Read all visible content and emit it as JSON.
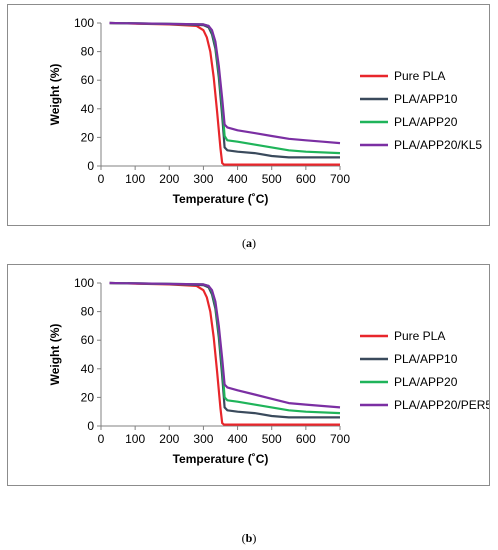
{
  "chart_data": [
    {
      "type": "line",
      "panel_label": "a",
      "xlabel": "Temperature (˚C)",
      "ylabel": "Weight (%)",
      "xlim": [
        0,
        700
      ],
      "ylim": [
        0,
        100
      ],
      "xticks": [
        "0",
        "100",
        "200",
        "300",
        "400",
        "500",
        "600",
        "700"
      ],
      "yticks": [
        "0",
        "20",
        "40",
        "60",
        "80",
        "100"
      ],
      "legend_position": "right",
      "grid": false,
      "series": [
        {
          "name": "Pure PLA",
          "color": "#e8262b",
          "x": [
            25,
            100,
            200,
            280,
            300,
            310,
            320,
            330,
            340,
            350,
            355,
            360,
            400,
            500,
            600,
            700
          ],
          "y": [
            100,
            99.6,
            99,
            98,
            95,
            90,
            80,
            62,
            38,
            12,
            2,
            1,
            1,
            1,
            1,
            1
          ]
        },
        {
          "name": "PLA/APP10",
          "color": "#3a4a5c",
          "x": [
            25,
            100,
            200,
            300,
            315,
            325,
            335,
            345,
            355,
            362,
            370,
            400,
            450,
            500,
            550,
            600,
            700
          ],
          "y": [
            100,
            99.7,
            99.3,
            98.5,
            97,
            92,
            82,
            62,
            35,
            13,
            11,
            10,
            9,
            7,
            6,
            6,
            6
          ]
        },
        {
          "name": "PLA/APP20",
          "color": "#1fb45a",
          "x": [
            25,
            100,
            200,
            300,
            315,
            325,
            335,
            345,
            355,
            362,
            370,
            400,
            450,
            500,
            550,
            600,
            700
          ],
          "y": [
            100,
            99.7,
            99.4,
            99,
            98,
            94,
            85,
            66,
            42,
            21,
            18,
            17,
            15,
            13,
            11,
            10,
            9
          ]
        },
        {
          "name": "PLA/APP20/KL5",
          "color": "#7b2fa3",
          "x": [
            25,
            100,
            200,
            300,
            315,
            325,
            335,
            345,
            355,
            362,
            370,
            400,
            450,
            500,
            550,
            600,
            650,
            700
          ],
          "y": [
            100,
            99.7,
            99.4,
            99,
            98,
            95,
            87,
            70,
            47,
            29,
            27,
            25,
            23,
            21,
            19,
            18,
            17,
            16
          ]
        }
      ]
    },
    {
      "type": "line",
      "panel_label": "b",
      "xlabel": "Temperature (˚C)",
      "ylabel": "Weight (%)",
      "xlim": [
        0,
        700
      ],
      "ylim": [
        0,
        100
      ],
      "xticks": [
        "0",
        "100",
        "200",
        "300",
        "400",
        "500",
        "600",
        "700"
      ],
      "yticks": [
        "0",
        "20",
        "40",
        "60",
        "80",
        "100"
      ],
      "legend_position": "right",
      "grid": false,
      "series": [
        {
          "name": "Pure PLA",
          "color": "#e8262b",
          "x": [
            25,
            100,
            200,
            280,
            300,
            310,
            320,
            330,
            340,
            350,
            355,
            360,
            400,
            500,
            600,
            700
          ],
          "y": [
            100,
            99.6,
            99,
            98,
            95,
            90,
            80,
            62,
            38,
            12,
            2,
            1,
            1,
            1,
            1,
            1
          ]
        },
        {
          "name": "PLA/APP10",
          "color": "#3a4a5c",
          "x": [
            25,
            100,
            200,
            300,
            315,
            325,
            335,
            345,
            355,
            362,
            370,
            400,
            450,
            500,
            550,
            600,
            700
          ],
          "y": [
            100,
            99.7,
            99.3,
            98.5,
            97,
            92,
            82,
            62,
            35,
            13,
            11,
            10,
            9,
            7,
            6,
            6,
            6
          ]
        },
        {
          "name": "PLA/APP20",
          "color": "#1fb45a",
          "x": [
            25,
            100,
            200,
            300,
            315,
            325,
            335,
            345,
            355,
            362,
            370,
            400,
            450,
            500,
            550,
            600,
            700
          ],
          "y": [
            100,
            99.7,
            99.4,
            99,
            98,
            94,
            85,
            66,
            42,
            20,
            18,
            17,
            15,
            13,
            11,
            10,
            9
          ]
        },
        {
          "name": "PLA/APP20/PER5",
          "color": "#7b2fa3",
          "x": [
            25,
            100,
            200,
            300,
            315,
            325,
            335,
            345,
            355,
            362,
            370,
            400,
            450,
            500,
            550,
            600,
            650,
            700
          ],
          "y": [
            100,
            99.7,
            99.4,
            99,
            98,
            95,
            87,
            70,
            47,
            29,
            27,
            25,
            22,
            19,
            16,
            15,
            14,
            13
          ]
        }
      ]
    }
  ]
}
